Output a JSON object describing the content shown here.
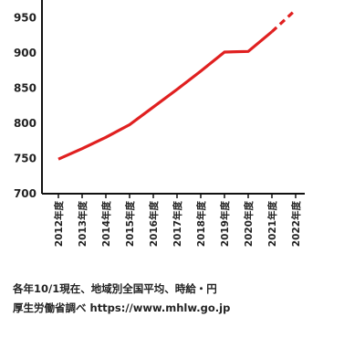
{
  "chart_data": {
    "type": "line",
    "title": "",
    "xlabel": "",
    "ylabel": "",
    "categories": [
      "2012年度",
      "2013年度",
      "2014年度",
      "2015年度",
      "2016年度",
      "2017年度",
      "2018年度",
      "2019年度",
      "2020年度",
      "2021年度",
      "2022年度"
    ],
    "y_ticks": [
      "950",
      "900",
      "850",
      "800",
      "750",
      "700"
    ],
    "ylim": [
      700,
      975
    ],
    "grid": false,
    "legend": "none",
    "line_color": "#e02020",
    "series": [
      {
        "values": [
          749,
          764,
          780,
          798,
          823,
          848,
          874,
          901,
          902,
          930,
          null
        ],
        "style": "solid"
      },
      {
        "values": [
          null,
          null,
          null,
          null,
          null,
          null,
          null,
          null,
          null,
          930,
          961
        ],
        "style": "dashed"
      }
    ]
  },
  "footer": {
    "line1": "各年10/1現在、地域別全国平均、時給・円",
    "line2": "厚生労働省調べ https://www.mhlw.go.jp"
  }
}
